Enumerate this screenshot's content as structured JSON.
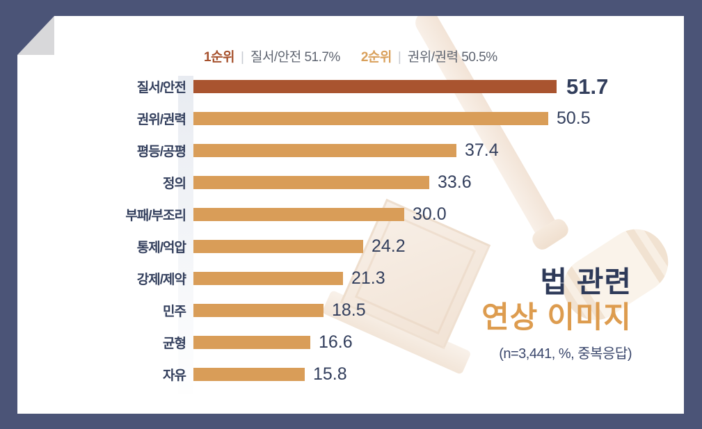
{
  "frame": {
    "background_color": "#4B5477",
    "card_color": "#ffffff",
    "fold_color": "#d8d8da"
  },
  "legend": {
    "separator": "|",
    "items": [
      {
        "rank": "1순위",
        "text": "질서/안전 51.7%",
        "rank_color": "#A6512D"
      },
      {
        "rank": "2순위",
        "text": "권위/권력 50.5%",
        "rank_color": "#D9A05B"
      }
    ]
  },
  "title": {
    "line1": "법 관련",
    "line2": "연상 이미지",
    "note": "(n=3,441, %, 중복응답)",
    "line1_color": "#2E3A59",
    "line2_color": "#DD9C4F"
  },
  "watermark": {
    "icon": "gavel-and-sound-block"
  },
  "chart_data": {
    "type": "bar",
    "orientation": "horizontal",
    "title": "법 관련 연상 이미지",
    "note": "(n=3,441, %, 중복응답)",
    "unit": "%",
    "categories": [
      "질서/안전",
      "권위/권력",
      "평등/공평",
      "정의",
      "부패/부조리",
      "통제/억압",
      "강제/제약",
      "민주",
      "균형",
      "자유"
    ],
    "values": [
      51.7,
      50.5,
      37.4,
      33.6,
      30.0,
      24.2,
      21.3,
      18.5,
      16.6,
      15.8
    ],
    "value_labels": [
      "51.7",
      "50.5",
      "37.4",
      "33.6",
      "30.0",
      "24.2",
      "21.3",
      "18.5",
      "16.6",
      "15.8"
    ],
    "highlight_index": 0,
    "bar_color": "#D99D58",
    "highlight_color": "#A9542F",
    "label_color": "#323E5C",
    "xlim": [
      0,
      51.7
    ],
    "grid": false,
    "legend_position": "top"
  }
}
